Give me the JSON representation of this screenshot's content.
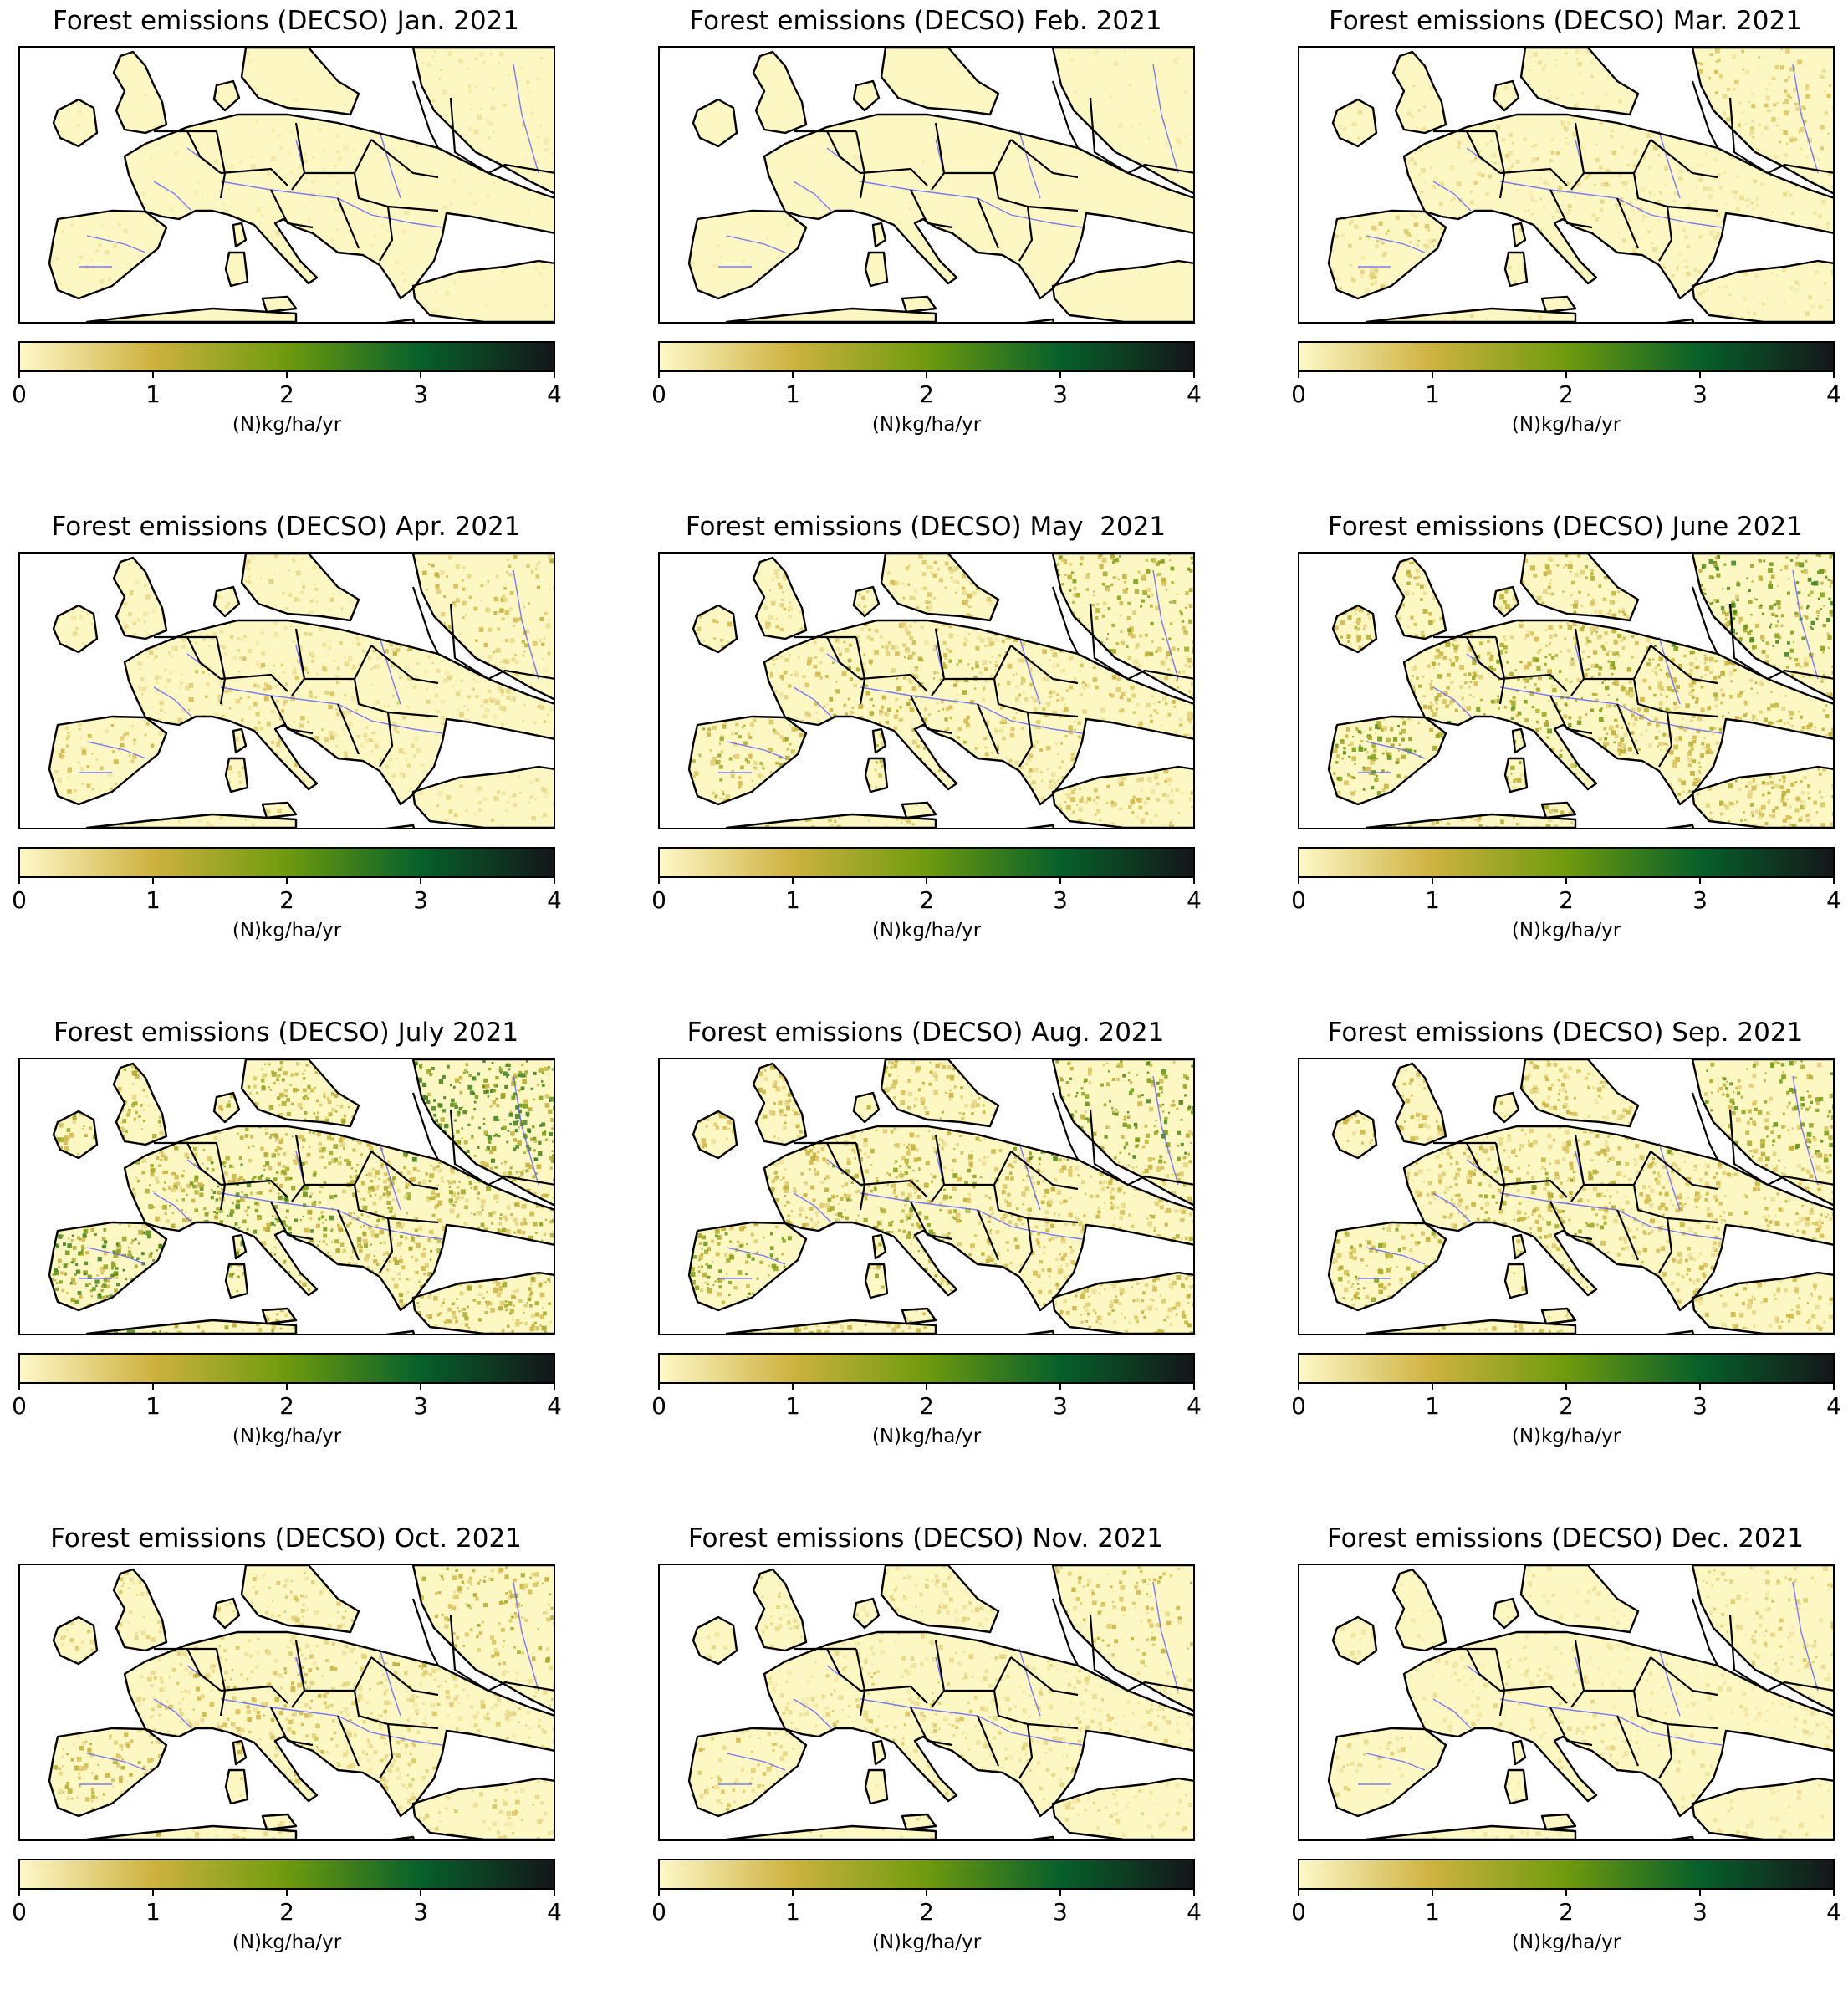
{
  "colorbar": {
    "label": "(N)kg/ha/yr",
    "ticks": [
      "0",
      "1",
      "2",
      "3",
      "4"
    ],
    "min": 0,
    "max": 4,
    "colors": [
      "#fdf8c8",
      "#cdb23f",
      "#6f9a0e",
      "#07602b",
      "#14161a"
    ]
  },
  "map_colors": {
    "sea": "#ffffff",
    "land_base": "#fdf7c4",
    "border": "#000000",
    "river": "#5a5aff"
  },
  "panels": [
    {
      "title": "Forest emissions (DECSO) Jan. 2021",
      "intensity": 0.1
    },
    {
      "title": "Forest emissions (DECSO) Feb. 2021",
      "intensity": 0.06
    },
    {
      "title": "Forest emissions (DECSO) Mar. 2021",
      "intensity": 0.22
    },
    {
      "title": "Forest emissions (DECSO) Apr. 2021",
      "intensity": 0.3
    },
    {
      "title": "Forest emissions (DECSO) May  2021",
      "intensity": 0.48
    },
    {
      "title": "Forest emissions (DECSO) June 2021",
      "intensity": 0.68
    },
    {
      "title": "Forest emissions (DECSO) July 2021",
      "intensity": 0.8
    },
    {
      "title": "Forest emissions (DECSO) Aug. 2021",
      "intensity": 0.62
    },
    {
      "title": "Forest emissions (DECSO) Sep. 2021",
      "intensity": 0.55
    },
    {
      "title": "Forest emissions (DECSO) Oct. 2021",
      "intensity": 0.38
    },
    {
      "title": "Forest emissions (DECSO) Nov. 2021",
      "intensity": 0.3
    },
    {
      "title": "Forest emissions (DECSO) Dec. 2021",
      "intensity": 0.2
    }
  ]
}
